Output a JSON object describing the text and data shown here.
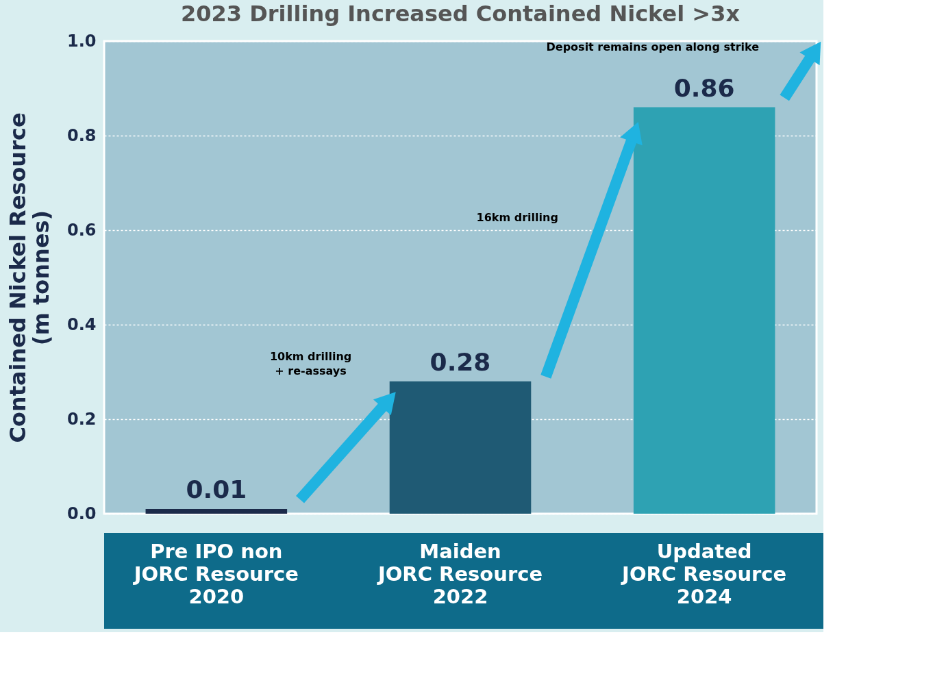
{
  "chart_data": {
    "type": "bar",
    "title": "2023 Drilling Increased Contained Nickel >3x",
    "ylabel": "Contained Nickel Resource\n(m tonnes)",
    "categories": [
      "Pre IPO non\nJORC Resource\n2020",
      "Maiden\nJORC Resource\n2022",
      "Updated\nJORC Resource\n2024"
    ],
    "values": [
      0.01,
      0.28,
      0.86
    ],
    "colors": [
      "#1b2a4a",
      "#1f5a74",
      "#2ea2b3"
    ],
    "ylim": [
      0,
      1
    ],
    "yticks": [
      {
        "value": 0,
        "label": "0.0"
      },
      0.2,
      0.4,
      0.6,
      0.8,
      {
        "value": 1,
        "label": "1.0"
      }
    ],
    "grid": "y",
    "data_labels": true,
    "annotations": [
      "10km drilling\n+ re-assays",
      "16km drilling",
      "Deposit remains open along strike"
    ]
  }
}
